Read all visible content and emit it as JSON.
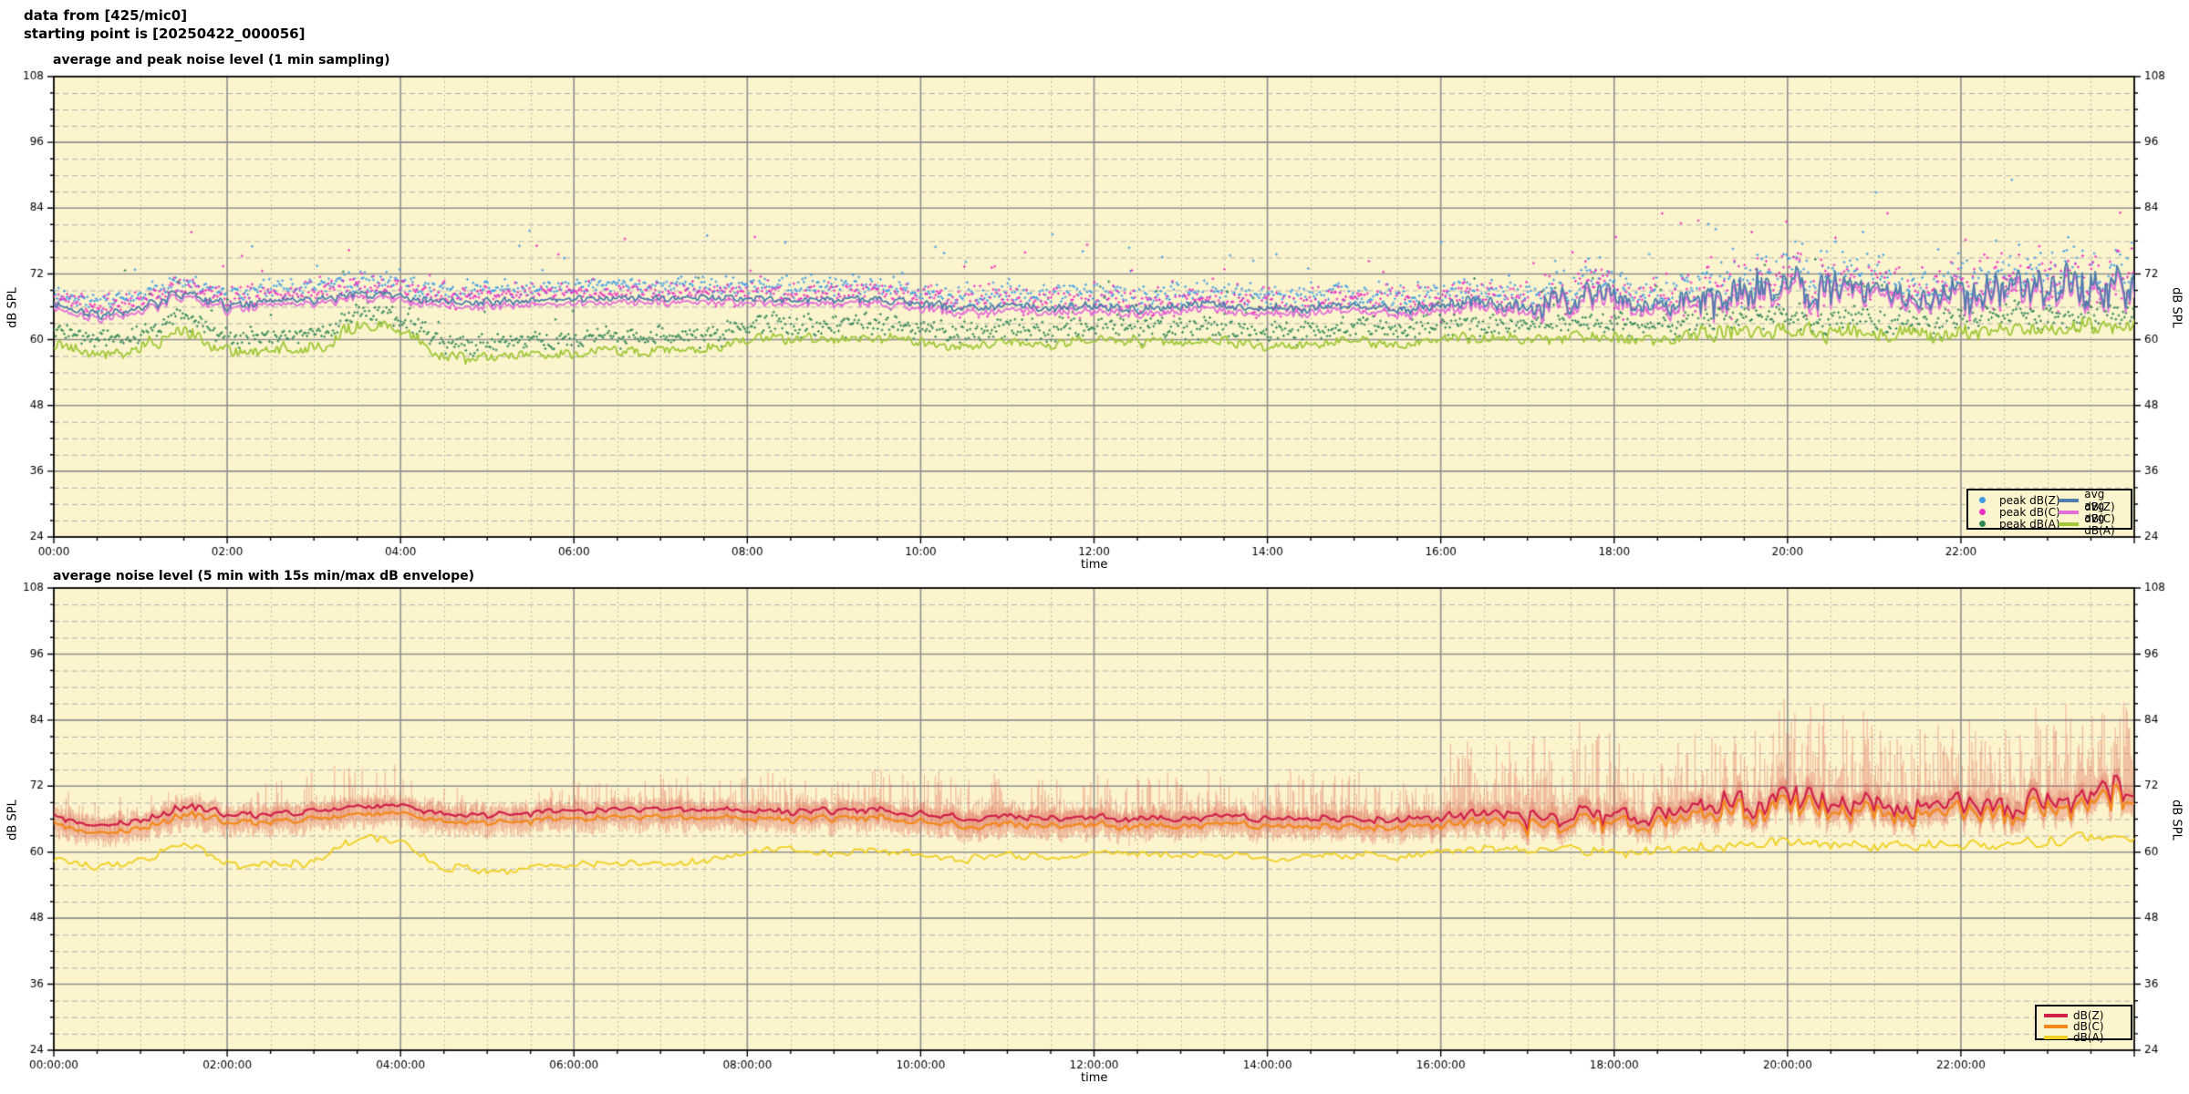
{
  "header": {
    "line1": "data from [425/mic0]",
    "line2": "starting point is [20250422_000056]"
  },
  "colors": {
    "page_bg": "#ffffff",
    "plot_bg": "#fcf4cd",
    "grid_major": "#8f8f8f",
    "grid_minor_h": "#b0b0b0",
    "grid_minor_v": "#bdbd9f",
    "border": "#000000",
    "text": "#000000",
    "envelope": "rgba(223,108,87,0.42)"
  },
  "chart_data": [
    {
      "type": "scatter",
      "title": "average and peak noise level (1 min sampling)",
      "x_axis": {
        "label": "time",
        "tick_labels": [
          "00:00",
          "02:00",
          "04:00",
          "06:00",
          "08:00",
          "10:00",
          "12:00",
          "14:00",
          "16:00",
          "18:00",
          "20:00",
          "22:00"
        ],
        "tick_hours": [
          0,
          2,
          4,
          6,
          8,
          10,
          12,
          14,
          16,
          18,
          20,
          22
        ],
        "minor_tick_hours": 0.5,
        "range_hours": [
          0,
          24
        ]
      },
      "y_axis": {
        "label": "dB SPL",
        "ticks": [
          24,
          36,
          48,
          60,
          72,
          84,
          96,
          108
        ],
        "minor_step": 3,
        "range": [
          24,
          108
        ],
        "mirrored": true
      },
      "legend_position": "inside bottom right",
      "grid": true,
      "x_start_hour": 0,
      "x_step_hours": 0.5,
      "series": [
        {
          "name": "peak dB(Z)",
          "type": "scatter",
          "color": "#3f9de6",
          "follows": "avg dB(Z)",
          "typical_offset_db": 2.3,
          "spread_db": 1.6
        },
        {
          "name": "peak dB(C)",
          "type": "scatter",
          "color": "#ee2fc4",
          "follows": "avg dB(C)",
          "typical_offset_db": 2.1,
          "spread_db": 1.9
        },
        {
          "name": "peak dB(A)",
          "type": "scatter",
          "color": "#2f8757",
          "follows": "avg dB(A)",
          "typical_offset_db": 2.6,
          "spread_db": 1.5
        },
        {
          "name": "avg dB(Z)",
          "type": "line",
          "color": "#4d7eac",
          "values": [
            66.3,
            64.7,
            65.3,
            68.6,
            66.4,
            66.8,
            67.4,
            68.2,
            68.1,
            66.9,
            66.8,
            67.0,
            67.5,
            67.5,
            67.6,
            67.5,
            67.4,
            67.2,
            67.3,
            67.5,
            66.6,
            65.8,
            66.2,
            66.0,
            66.2,
            65.8,
            66.0,
            66.1,
            65.6,
            65.7,
            66.0,
            65.6,
            66.2,
            66.6,
            66.3,
            67.6,
            67.0,
            66.4,
            67.0,
            69.0,
            69.4,
            68.8,
            68.3,
            68.0,
            68.4,
            68.8,
            69.4,
            70.4,
            70.2
          ]
        },
        {
          "name": "avg dB(C)",
          "type": "line",
          "color": "#e26fd8",
          "values": [
            65.6,
            63.9,
            64.6,
            68.0,
            65.7,
            66.1,
            66.7,
            67.5,
            67.4,
            66.1,
            66.0,
            66.2,
            66.7,
            66.7,
            66.8,
            66.7,
            66.6,
            66.4,
            66.5,
            66.7,
            65.7,
            64.9,
            65.3,
            65.1,
            65.3,
            64.9,
            65.1,
            65.2,
            64.7,
            64.8,
            65.1,
            64.7,
            65.3,
            65.7,
            65.4,
            66.7,
            66.1,
            65.5,
            66.1,
            68.1,
            68.5,
            67.9,
            67.4,
            67.1,
            67.5,
            67.9,
            68.5,
            69.5,
            69.3
          ]
        },
        {
          "name": "avg dB(A)",
          "type": "line",
          "color": "#a0c838",
          "values": [
            58.8,
            57.3,
            58.3,
            61.6,
            57.5,
            58.4,
            58.2,
            62.8,
            62.0,
            57.0,
            56.6,
            57.0,
            57.6,
            58.1,
            57.8,
            58.2,
            60.0,
            60.4,
            60.0,
            60.4,
            59.6,
            58.6,
            59.5,
            59.0,
            60.0,
            59.6,
            59.6,
            59.6,
            58.8,
            59.2,
            59.6,
            59.2,
            60.0,
            60.5,
            60.2,
            60.6,
            60.0,
            60.2,
            60.6,
            61.2,
            61.6,
            61.2,
            61.2,
            60.8,
            61.2,
            61.8,
            62.6,
            62.3,
            62.2
          ]
        }
      ],
      "volatility_db_per_hour": [
        0.55,
        0.7,
        0.55,
        0.5,
        0.5,
        0.45,
        0.45,
        0.45,
        0.5,
        0.5,
        0.55,
        0.55,
        0.55,
        0.55,
        0.55,
        0.6,
        0.9,
        1.9,
        1.3,
        2.3,
        2.3,
        2.0,
        2.1,
        2.5
      ],
      "green_volatility_db_per_hour": [
        0.7,
        0.8,
        0.7,
        0.8,
        0.7,
        0.6,
        0.6,
        0.6,
        0.6,
        0.6,
        0.6,
        0.6,
        0.6,
        0.6,
        0.6,
        0.6,
        0.7,
        0.8,
        0.8,
        1.0,
        1.0,
        0.9,
        1.0,
        1.0
      ],
      "peak_spread_boost_per_hour": [
        1.0,
        1.0,
        1.3,
        1.6,
        1.3,
        1.0,
        1.1,
        1.3,
        1.4,
        1.4,
        1.5,
        1.7,
        1.7,
        1.7,
        1.7,
        1.8,
        2.0,
        2.4,
        2.4,
        2.7,
        2.7,
        2.6,
        2.6,
        3.0
      ]
    },
    {
      "type": "line",
      "title": "average noise level (5 min with 15s min/max dB envelope)",
      "x_axis": {
        "label": "time",
        "tick_labels": [
          "00:00:00",
          "02:00:00",
          "04:00:00",
          "06:00:00",
          "08:00:00",
          "10:00:00",
          "12:00:00",
          "14:00:00",
          "16:00:00",
          "18:00:00",
          "20:00:00",
          "22:00:00"
        ],
        "tick_hours": [
          0,
          2,
          4,
          6,
          8,
          10,
          12,
          14,
          16,
          18,
          20,
          22
        ],
        "minor_tick_hours": 0.5,
        "range_hours": [
          0,
          24
        ]
      },
      "y_axis": {
        "label": "dB SPL",
        "ticks": [
          24,
          36,
          48,
          60,
          72,
          84,
          96,
          108
        ],
        "minor_step": 3,
        "range": [
          24,
          108
        ],
        "mirrored": true
      },
      "legend_position": "inside bottom right",
      "grid": true,
      "x_start_hour": 0,
      "x_step_hours": 0.5,
      "series": [
        {
          "name": "dB(Z)",
          "type": "line",
          "color": "#d0204a",
          "values": [
            66.5,
            64.9,
            65.5,
            68.8,
            66.6,
            67.0,
            67.6,
            68.4,
            68.3,
            67.1,
            67.0,
            67.2,
            67.7,
            67.7,
            67.8,
            67.7,
            67.6,
            67.4,
            67.5,
            67.7,
            66.8,
            66.0,
            66.4,
            66.2,
            66.4,
            66.0,
            66.2,
            66.3,
            65.8,
            65.9,
            66.2,
            65.8,
            66.4,
            66.8,
            66.5,
            67.8,
            67.2,
            66.6,
            67.2,
            69.2,
            69.6,
            69.0,
            68.5,
            68.2,
            68.6,
            69.0,
            69.6,
            70.6,
            70.4
          ]
        },
        {
          "name": "dB(C)",
          "type": "line",
          "color": "#f2891a",
          "values": [
            65.1,
            63.5,
            64.1,
            67.4,
            65.2,
            65.6,
            66.2,
            67.0,
            66.9,
            65.7,
            65.6,
            65.8,
            66.3,
            66.3,
            66.4,
            66.3,
            66.2,
            66.0,
            66.1,
            66.3,
            65.4,
            64.6,
            65.0,
            64.8,
            65.0,
            64.6,
            64.8,
            64.9,
            64.4,
            64.5,
            64.8,
            64.4,
            65.0,
            65.4,
            65.1,
            66.4,
            65.8,
            65.2,
            65.8,
            67.8,
            68.2,
            67.6,
            67.1,
            66.8,
            67.2,
            67.6,
            68.2,
            69.2,
            69.0
          ]
        },
        {
          "name": "dB(A)",
          "type": "line",
          "color": "#f0d020",
          "values": [
            58.8,
            57.3,
            58.3,
            61.6,
            57.5,
            58.4,
            58.2,
            62.8,
            62.0,
            57.0,
            56.6,
            57.0,
            57.6,
            58.1,
            57.8,
            58.2,
            60.0,
            60.4,
            60.0,
            60.4,
            59.6,
            58.6,
            59.5,
            59.0,
            60.0,
            59.6,
            59.6,
            59.6,
            58.8,
            59.2,
            59.6,
            59.2,
            60.0,
            60.5,
            60.2,
            60.6,
            60.0,
            60.2,
            60.6,
            61.2,
            61.6,
            61.2,
            61.2,
            60.8,
            61.2,
            61.8,
            62.6,
            62.3,
            62.2
          ]
        },
        {
          "name": "15s min/max envelope",
          "type": "envelope",
          "color": "rgba(223,108,87,0.42)",
          "max_above_db_per_hour": [
            5,
            4.5,
            7,
            8,
            6,
            5,
            6,
            6.5,
            7,
            7.5,
            8.5,
            9,
            8.5,
            8.5,
            9,
            9,
            13,
            16,
            13,
            17,
            17,
            14,
            15,
            18
          ],
          "min_below_db": 2.5,
          "density_per_hour": [
            0.45,
            0.4,
            0.55,
            0.65,
            0.5,
            0.5,
            0.6,
            0.65,
            0.7,
            0.7,
            0.75,
            0.8,
            0.78,
            0.78,
            0.8,
            0.8,
            0.95,
            1,
            1,
            1,
            1,
            1,
            1,
            1
          ]
        }
      ]
    }
  ]
}
